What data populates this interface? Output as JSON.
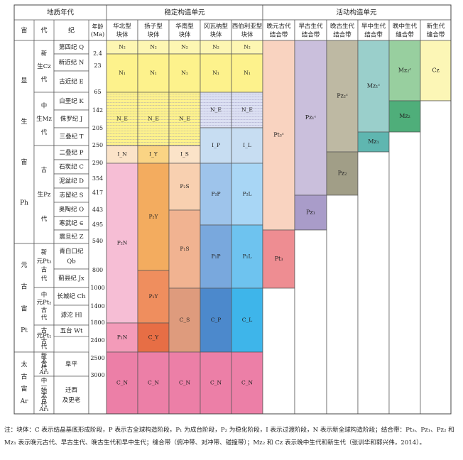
{
  "header": {
    "geo_time": "地质年代",
    "stable_units": "稳定构造单元",
    "active_units": "活动构造单元",
    "eon": "宙",
    "era": "代",
    "period": "纪",
    "age": "年龄 (Ma)"
  },
  "stable_columns": [
    {
      "id": "hb",
      "label": "华北型 块体"
    },
    {
      "id": "yz",
      "label": "扬子型 块体"
    },
    {
      "id": "hn",
      "label": "华南型 块体"
    },
    {
      "id": "gw",
      "label": "冈瓦纳型 块体"
    },
    {
      "id": "xb",
      "label": "西伯利亚型 块体"
    }
  ],
  "active_columns": [
    {
      "id": "wy",
      "label": "晚元古代 结合带"
    },
    {
      "id": "zg",
      "label": "早古生代 结合带"
    },
    {
      "id": "wg",
      "label": "晚古生代 结合带"
    },
    {
      "id": "zz",
      "label": "早中生代 结合带"
    },
    {
      "id": "wz",
      "label": "晚中生代 缝合带"
    },
    {
      "id": "xs",
      "label": "新生代 缝合带"
    }
  ],
  "eons": [
    {
      "label": "显 生 宙 Ph"
    },
    {
      "label": "元 古 宙 Pt"
    },
    {
      "label": "太 古 宙 Ar"
    }
  ],
  "eras": [
    {
      "label": "新 生Cz 代"
    },
    {
      "label": "中 生Mz 代"
    },
    {
      "label": "古 生Pz 代"
    },
    {
      "label": "新 元Pt₃ 古 代"
    },
    {
      "label": "中 元Pt₂ 古 代"
    },
    {
      "label": "古 元Pt₁ 古 代"
    },
    {
      "label": "新 太 古 代 Ar₂"
    },
    {
      "label": "中 — 始 太 古 代 Ar₁"
    }
  ],
  "periods": [
    {
      "label": "第四纪 Q"
    },
    {
      "label": "新近纪 N"
    },
    {
      "label": "古近纪 E"
    },
    {
      "label": "白垩纪 K"
    },
    {
      "label": "侏罗纪 J"
    },
    {
      "label": "三叠纪 T"
    },
    {
      "label": "二叠纪 P"
    },
    {
      "label": "石炭纪 C"
    },
    {
      "label": "泥盆纪 D"
    },
    {
      "label": "志留纪 S"
    },
    {
      "label": "奥陶纪 O"
    },
    {
      "label": "寒武纪 ∈"
    },
    {
      "label": "震旦纪 Z"
    },
    {
      "label": "青白口纪 Qb"
    },
    {
      "label": "蓟县纪 Jx"
    },
    {
      "label": "长城纪 Ch"
    },
    {
      "label": "滹沱 Hl"
    },
    {
      "label": "五台 Wt"
    },
    {
      "label": "阜平"
    },
    {
      "label": "迁西 及更老"
    }
  ],
  "ages": [
    "2.4",
    "23",
    "65",
    "142",
    "205",
    "250",
    "290",
    "354",
    "417",
    "443",
    "495",
    "540",
    "800",
    "1000",
    "1400",
    "1800",
    "2400",
    "2500",
    "3000"
  ],
  "cells": {
    "hb": [
      {
        "label": "N₂",
        "color": "#FDF6B2"
      },
      {
        "label": "N₁",
        "color": "#FDF28C"
      },
      {
        "label": "N_E",
        "color": "#FDF28C",
        "hatch": true
      },
      {
        "label": "I_N",
        "color": "#FBE3C8"
      },
      {
        "label": "P₂N",
        "color": "#F6BED5"
      },
      {
        "label": "P₁N",
        "color": "#F39BB9"
      },
      {
        "label": "C_N",
        "color": "#EC7FA7"
      }
    ],
    "yz": [
      {
        "label": "N₂",
        "color": "#FDF6B2"
      },
      {
        "label": "N₁",
        "color": "#FDF28C"
      },
      {
        "label": "N_E",
        "color": "#FDF28C",
        "hatch": true
      },
      {
        "label": "I_Y",
        "color": "#FAD484"
      },
      {
        "label": "P₂Y",
        "color": "#F3AC5F"
      },
      {
        "label": "P₁Y",
        "color": "#EF8E5E"
      },
      {
        "label": "C_Y",
        "color": "#E76E45"
      },
      {
        "label": "C_N",
        "color": "#EC7FA7"
      }
    ],
    "hn": [
      {
        "label": "N₂",
        "color": "#FDF6B2"
      },
      {
        "label": "N₁",
        "color": "#FDF28C"
      },
      {
        "label": "N_E",
        "color": "#FDF28C",
        "hatch": true
      },
      {
        "label": "I_S",
        "color": "#FBE3C8"
      },
      {
        "label": "P₂S",
        "color": "#F8D0B0"
      },
      {
        "label": "P₁S",
        "color": "#F1B391"
      },
      {
        "label": "C_S",
        "color": "#DE9B7D"
      },
      {
        "label": "C_N",
        "color": "#EC7FA7"
      }
    ],
    "gw": [
      {
        "label": "N₂",
        "color": "#FDF6B2"
      },
      {
        "label": "N₁",
        "color": "#FDF28C"
      },
      {
        "label": "N_E",
        "color": "#DCE0F2",
        "hatch": true
      },
      {
        "label": "I_P",
        "color": "#C7DDF2"
      },
      {
        "label": "P₂P",
        "color": "#9EC4EB"
      },
      {
        "label": "P₁P",
        "color": "#79A8DD"
      },
      {
        "label": "C_P",
        "color": "#4C89CC"
      },
      {
        "label": "C_N",
        "color": "#EC7FA7"
      }
    ],
    "xb": [
      {
        "label": "N₂",
        "color": "#FDF6B2"
      },
      {
        "label": "N₁",
        "color": "#FDF28C"
      },
      {
        "label": "N_E",
        "color": "#DCE0F2",
        "hatch": true
      },
      {
        "label": "I_L",
        "color": "#C7DDF2"
      },
      {
        "label": "P₂L",
        "color": "#A8D6F5"
      },
      {
        "label": "P₁L",
        "color": "#6EC3EF"
      },
      {
        "label": "C_L",
        "color": "#3EB5EA"
      },
      {
        "label": "C_N",
        "color": "#EC7FA7"
      }
    ],
    "wy": [
      {
        "label": "Pt₃ᶜ",
        "color": "#F9D3C0"
      },
      {
        "label": "Pt₃",
        "color": "#EE8D92"
      }
    ],
    "zg": [
      {
        "label": "Pz₁ᶜ",
        "color": "#CABFDC"
      },
      {
        "label": "Pz₁",
        "color": "#A99CC9"
      }
    ],
    "wg": [
      {
        "label": "Pz₂ᶜ",
        "color": "#BEB9A3"
      },
      {
        "label": "Pz₂",
        "color": "#A19E87"
      }
    ],
    "zz": [
      {
        "label": "Mz₁ᶜ",
        "color": "#9ACFCB"
      },
      {
        "label": "Mz₁",
        "color": "#5FB6B0"
      }
    ],
    "wz": [
      {
        "label": "Mz₂ᶜ",
        "color": "#98CF9F"
      },
      {
        "label": "Mz₂",
        "color": "#4FAE7A"
      }
    ],
    "xs": [
      {
        "label": "Cz",
        "color": "#FCF6B6"
      }
    ]
  },
  "note": "注：块体：C 表示结晶基底形成阶段，P 表示古全球构造阶段，P₁ 为成台阶段，P₂ 为稳化阶段，I 表示过渡阶段，N 表示新全球构造阶段；结合带：Pt₃、Pz₁、Pz₂ 和 Mz₁ 表示晚元古代、早古生代、晚古生代和早中生代；缝合带（俯冲带、对冲带、碰撞带）；Mz₂ 和 Cz 表示晚中生代和新生代（张训华和郭兴伟，2014）。"
}
